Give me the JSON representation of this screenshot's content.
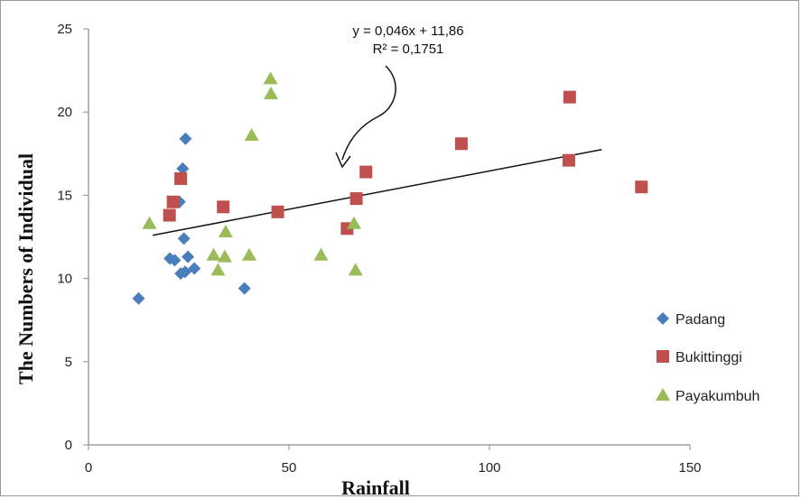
{
  "chart_data": {
    "type": "scatter",
    "xlabel": "Rainfall",
    "ylabel": "The Numbers of Individual",
    "xlim": [
      0,
      150
    ],
    "ylim": [
      0,
      25
    ],
    "xticks": [
      "0",
      "50",
      "100",
      "150"
    ],
    "yticks": [
      "0",
      "5",
      "10",
      "15",
      "20",
      "25"
    ],
    "grid": false,
    "legend_position": "right",
    "trendline": {
      "equation": "y = 0,046x + 11,86",
      "r_squared": "R² = 0,1751",
      "slope": 0.046,
      "intercept": 11.86,
      "x_range": [
        16,
        128
      ]
    },
    "series": [
      {
        "name": "Padang",
        "marker": "diamond",
        "color": "#4a7ebb",
        "points": [
          [
            12.5,
            8.8
          ],
          [
            20.3,
            11.2
          ],
          [
            21.5,
            11.1
          ],
          [
            23.0,
            10.3
          ],
          [
            24.1,
            10.4
          ],
          [
            24.8,
            11.3
          ],
          [
            26.4,
            10.6
          ],
          [
            38.9,
            9.4
          ],
          [
            23.8,
            12.4
          ],
          [
            22.7,
            14.6
          ],
          [
            23.5,
            16.6
          ],
          [
            24.2,
            18.4
          ]
        ]
      },
      {
        "name": "Bukittinggi",
        "marker": "square",
        "color": "#c0504d",
        "points": [
          [
            20.2,
            13.8
          ],
          [
            21.1,
            14.6
          ],
          [
            23.0,
            16.0
          ],
          [
            33.6,
            14.3
          ],
          [
            47.2,
            14.0
          ],
          [
            64.5,
            13.0
          ],
          [
            66.8,
            14.8
          ],
          [
            69.2,
            16.4
          ],
          [
            93.0,
            18.1
          ],
          [
            120.0,
            20.9
          ],
          [
            119.8,
            17.1
          ],
          [
            137.9,
            15.5
          ]
        ]
      },
      {
        "name": "Payakumbuh",
        "marker": "triangle",
        "color": "#9bbb59",
        "points": [
          [
            15.2,
            13.3
          ],
          [
            31.2,
            11.4
          ],
          [
            32.3,
            10.5
          ],
          [
            34.0,
            11.3
          ],
          [
            34.2,
            12.8
          ],
          [
            40.1,
            11.4
          ],
          [
            40.7,
            18.6
          ],
          [
            45.4,
            22.0
          ],
          [
            45.5,
            21.1
          ],
          [
            58.0,
            11.4
          ],
          [
            66.2,
            13.3
          ],
          [
            66.6,
            10.5
          ]
        ]
      }
    ]
  }
}
